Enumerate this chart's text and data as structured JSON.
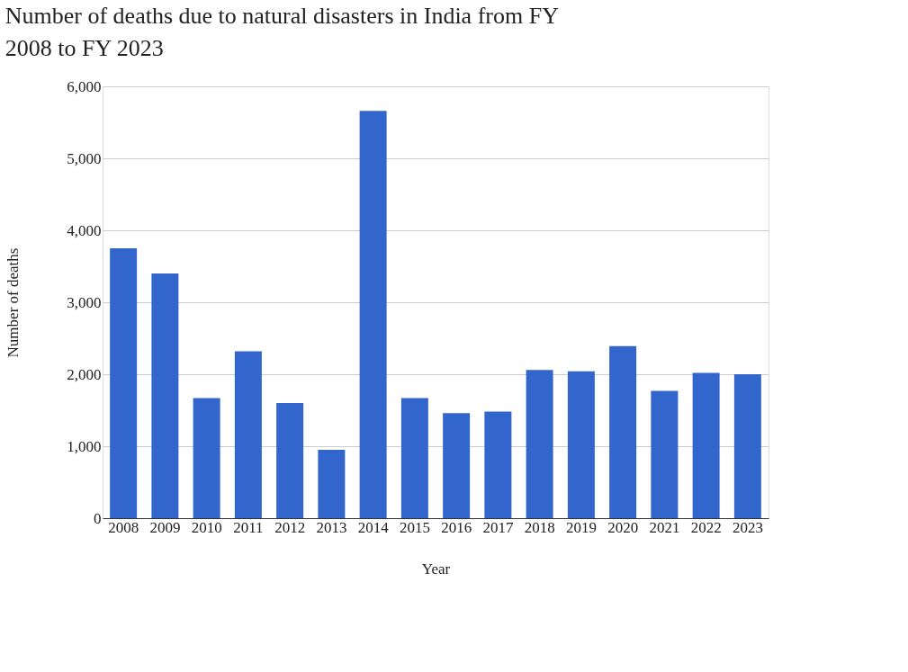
{
  "chart_data": {
    "type": "bar",
    "title": "Number of deaths due to natural disasters in India from FY 2008 to FY 2023",
    "xlabel": "Year",
    "ylabel": "Number of deaths",
    "categories": [
      "2008",
      "2009",
      "2010",
      "2011",
      "2012",
      "2013",
      "2014",
      "2015",
      "2016",
      "2017",
      "2018",
      "2019",
      "2020",
      "2021",
      "2022",
      "2023"
    ],
    "series": [
      {
        "color": "#3366cc",
        "values": [
          3750,
          3400,
          1670,
          2320,
          1600,
          950,
          5660,
          1670,
          1460,
          1480,
          2060,
          2040,
          2390,
          1770,
          2020,
          2000
        ]
      }
    ],
    "ylim": [
      0,
      6000
    ],
    "yticks": [
      0,
      {
        "value": 1000,
        "label": "1,000"
      },
      {
        "value": 2000,
        "label": "2,000"
      },
      {
        "value": 3000,
        "label": "3,000"
      },
      {
        "value": 4000,
        "label": "4,000"
      },
      {
        "value": 5000,
        "label": "5,000"
      },
      {
        "value": 6000,
        "label": "6,000"
      }
    ],
    "grid": "y"
  }
}
